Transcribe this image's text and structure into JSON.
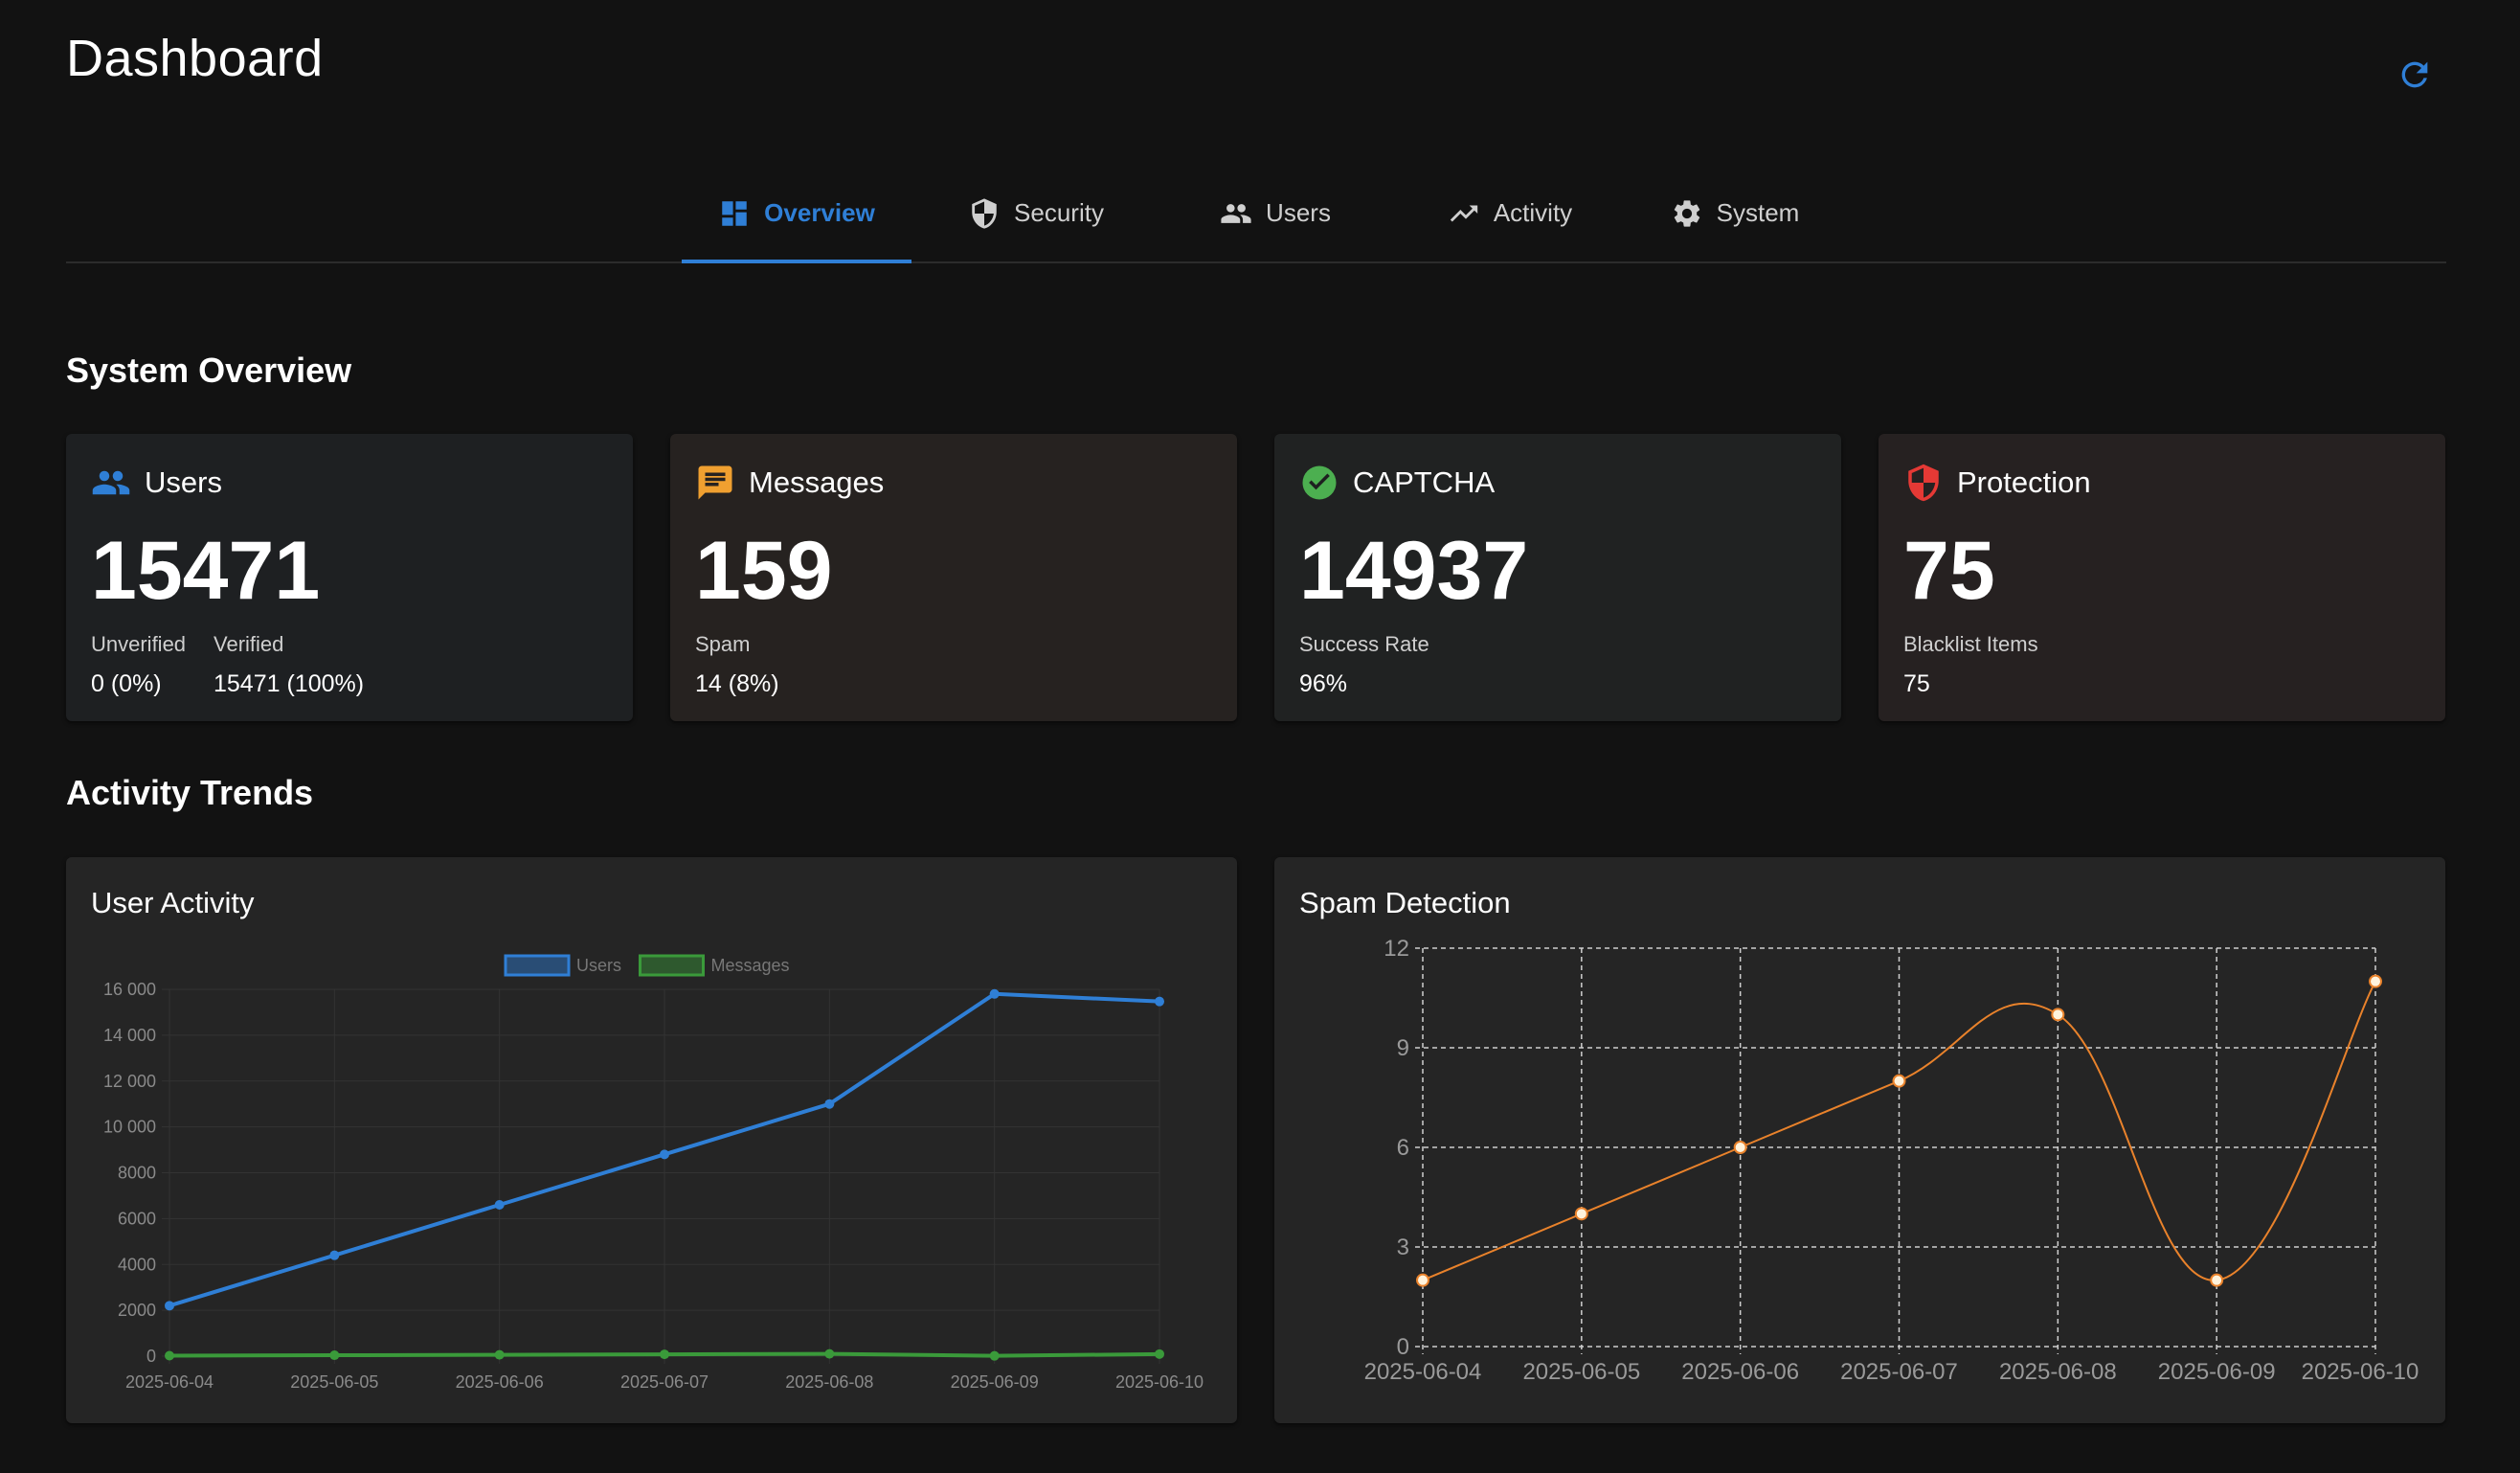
{
  "header": {
    "title": "Dashboard",
    "refresh_icon": "refresh-icon"
  },
  "tabs": [
    {
      "label": "Overview",
      "icon": "dashboard-icon",
      "active": true
    },
    {
      "label": "Security",
      "icon": "shield-icon",
      "active": false
    },
    {
      "label": "Users",
      "icon": "people-icon",
      "active": false
    },
    {
      "label": "Activity",
      "icon": "trending-icon",
      "active": false
    },
    {
      "label": "System",
      "icon": "gear-icon",
      "active": false
    }
  ],
  "sections": {
    "overview": "System Overview",
    "trends": "Activity Trends"
  },
  "cards": {
    "users": {
      "title": "Users",
      "value": "15471",
      "icon": "people-icon",
      "color": "#2f7fd6",
      "subs": [
        {
          "label": "Unverified",
          "value": "0 (0%)"
        },
        {
          "label": "Verified",
          "value": "15471 (100%)"
        }
      ]
    },
    "messages": {
      "title": "Messages",
      "value": "159",
      "icon": "chat-icon",
      "color": "#f0a030",
      "subs": [
        {
          "label": "Spam",
          "value": "14 (8%)"
        }
      ]
    },
    "captcha": {
      "title": "CAPTCHA",
      "value": "14937",
      "icon": "check-circle-icon",
      "color": "#4caf50",
      "subs": [
        {
          "label": "Success Rate",
          "value": "96%"
        }
      ]
    },
    "protection": {
      "title": "Protection",
      "value": "75",
      "icon": "shield-alert-icon",
      "color": "#e53935",
      "subs": [
        {
          "label": "Blacklist Items",
          "value": "75"
        }
      ]
    }
  },
  "charts": {
    "user_activity_title": "User Activity",
    "spam_title": "Spam Detection"
  },
  "chart_data": [
    {
      "type": "line",
      "title": "User Activity",
      "x": [
        "2025-06-04",
        "2025-06-05",
        "2025-06-06",
        "2025-06-07",
        "2025-06-08",
        "2025-06-09",
        "2025-06-10"
      ],
      "series": [
        {
          "name": "Users",
          "color": "#2f7fd6",
          "values": [
            2200,
            4400,
            6600,
            8800,
            11000,
            15800,
            15471
          ]
        },
        {
          "name": "Messages",
          "color": "#3a9a3a",
          "values": [
            20,
            40,
            60,
            80,
            100,
            14,
            90
          ]
        }
      ],
      "yticks": [
        "0",
        "2000",
        "4000",
        "6000",
        "8000",
        "10 000",
        "12 000",
        "14 000",
        "16 000"
      ],
      "ylim": [
        0,
        16000
      ],
      "legend": "top-center",
      "grid": true
    },
    {
      "type": "line",
      "title": "Spam Detection",
      "x": [
        "2025-06-04",
        "2025-06-05",
        "2025-06-06",
        "2025-06-07",
        "2025-06-08",
        "2025-06-09",
        "2025-06-10"
      ],
      "series": [
        {
          "color": "#e9822b",
          "values": [
            2,
            4,
            6,
            8,
            10,
            2,
            11
          ]
        }
      ],
      "yticks": [
        "0",
        "3",
        "6",
        "9",
        "12"
      ],
      "ylim": [
        0,
        12
      ],
      "grid": true
    }
  ]
}
